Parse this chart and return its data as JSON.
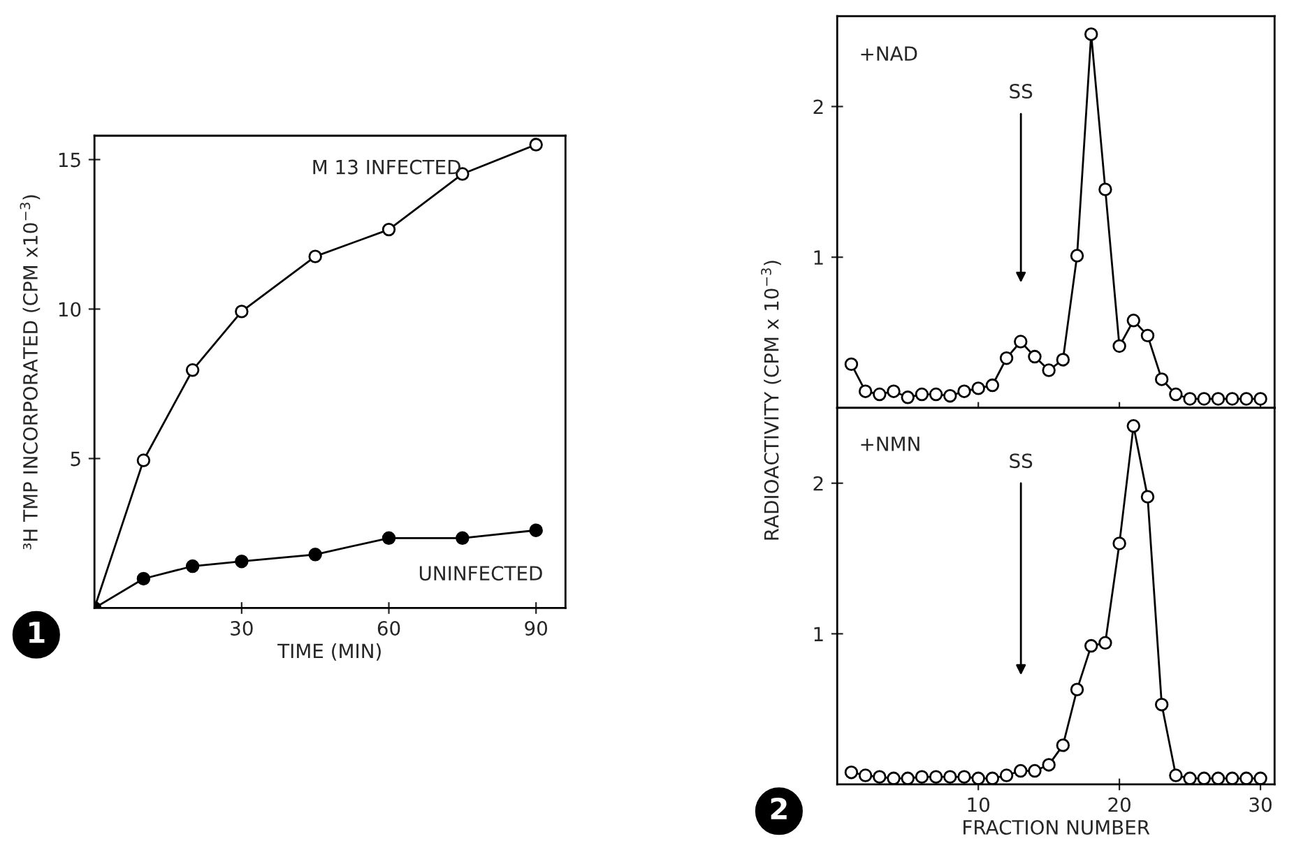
{
  "chart_data": [
    {
      "type": "line",
      "xlabel": "TIME (MIN)",
      "ylabel": "³H TMP INCORPORATED (CPM x10$^{−3}$)",
      "x": [
        0,
        10,
        20,
        30,
        45,
        60,
        75,
        90
      ],
      "xlim": [
        0,
        96
      ],
      "ylim": [
        0,
        15.8
      ],
      "xticks": [
        30,
        60,
        90
      ],
      "yticks": [
        5,
        10,
        15
      ],
      "marker": "circle",
      "line_style": "solid",
      "grid": false,
      "legend": false,
      "annotations": [
        "1"
      ],
      "series": [
        {
          "name": "M 13 INFECTED",
          "color": "#000000",
          "values": [
            0,
            4.94,
            7.96,
            9.92,
            11.76,
            12.66,
            14.52,
            15.5
          ]
        },
        {
          "name": "UNINFECTED",
          "color": "#000000",
          "values": [
            0,
            0.98,
            1.4,
            1.56,
            1.79,
            2.34,
            2.34,
            2.6
          ]
        }
      ]
    },
    {
      "type": "line",
      "title": "+NAD",
      "ylabel": "RADIOACTIVITY (CPM x 10$^{−3}$)",
      "x": [
        1,
        2,
        3,
        4,
        5,
        6,
        7,
        8,
        9,
        10,
        11,
        12,
        13,
        14,
        15,
        16,
        17,
        18,
        19,
        20,
        21,
        22,
        23,
        24,
        25,
        26,
        27,
        28,
        29,
        30
      ],
      "xlim": [
        0,
        31
      ],
      "ylim": [
        0,
        2.6
      ],
      "xticks": [
        10,
        20,
        30
      ],
      "yticks": [
        1,
        2
      ],
      "tick_labels": "y",
      "marker": "circle",
      "line_style": "solid",
      "grid": false,
      "legend": false,
      "annotations": [
        "SS"
      ],
      "series": [
        {
          "color": "#000000",
          "values": [
            0.29,
            0.11,
            0.09,
            0.11,
            0.07,
            0.09,
            0.09,
            0.08,
            0.11,
            0.13,
            0.15,
            0.33,
            0.44,
            0.34,
            0.25,
            0.32,
            1.01,
            2.48,
            1.45,
            0.41,
            0.58,
            0.48,
            0.19,
            0.09,
            0.06,
            0.06,
            0.06,
            0.06,
            0.06,
            0.06
          ]
        }
      ]
    },
    {
      "type": "line",
      "title": "+NMN",
      "xlabel": "FRACTION NUMBER",
      "x": [
        1,
        2,
        3,
        4,
        5,
        6,
        7,
        8,
        9,
        10,
        11,
        12,
        13,
        14,
        15,
        16,
        17,
        18,
        19,
        20,
        21,
        22,
        23,
        24,
        25,
        26,
        27,
        28,
        29,
        30
      ],
      "xlim": [
        0,
        31
      ],
      "ylim": [
        0,
        2.5
      ],
      "xticks": [
        10,
        20,
        30
      ],
      "yticks": [
        1,
        2
      ],
      "marker": "circle",
      "line_style": "solid",
      "grid": false,
      "legend": false,
      "annotations": [
        "SS",
        "2"
      ],
      "series": [
        {
          "color": "#000000",
          "values": [
            0.08,
            0.06,
            0.05,
            0.04,
            0.04,
            0.05,
            0.05,
            0.05,
            0.05,
            0.04,
            0.04,
            0.06,
            0.09,
            0.09,
            0.13,
            0.26,
            0.63,
            0.92,
            0.94,
            1.6,
            2.38,
            1.91,
            0.53,
            0.06,
            0.04,
            0.04,
            0.04,
            0.04,
            0.04,
            0.04
          ]
        }
      ]
    }
  ]
}
